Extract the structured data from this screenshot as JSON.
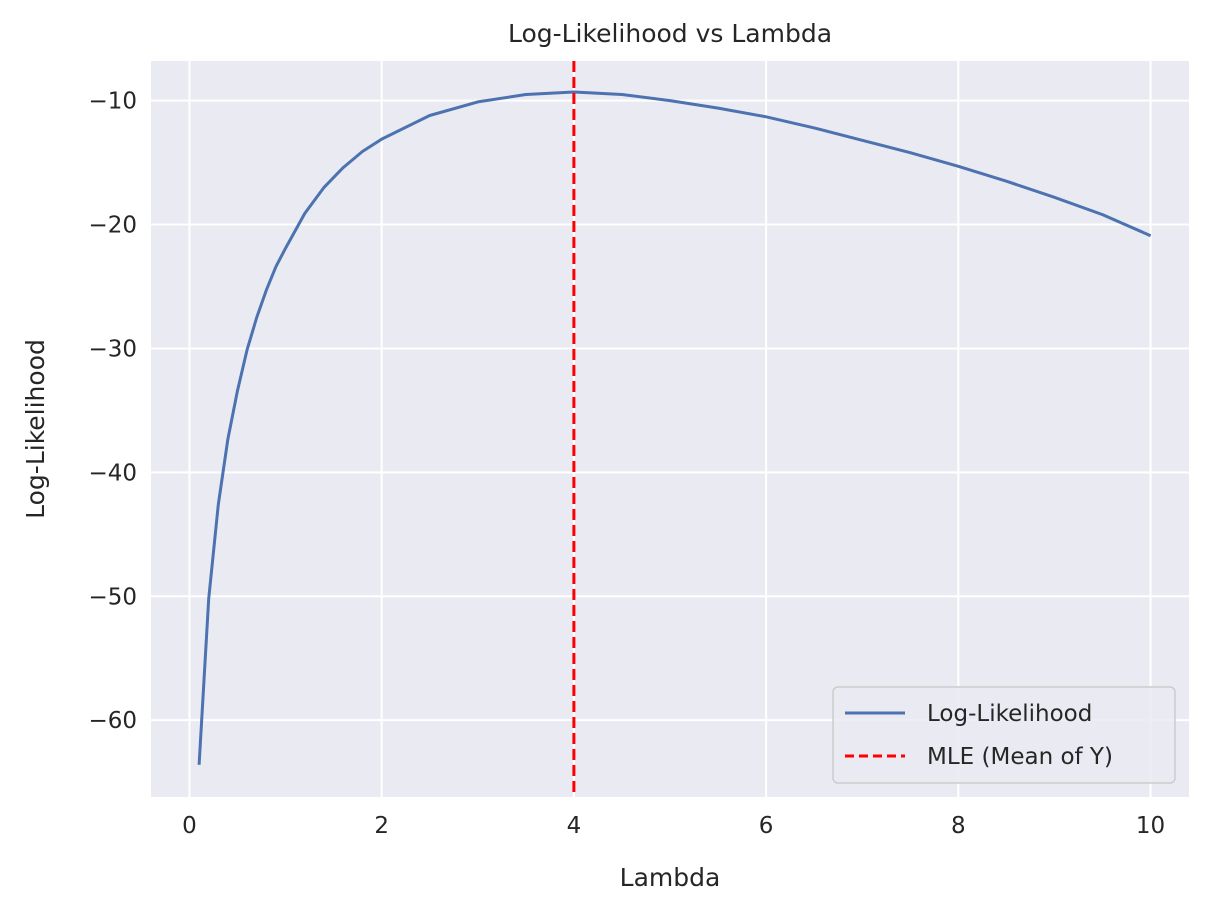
{
  "chart_data": {
    "type": "line",
    "title": "Log-Likelihood vs Lambda",
    "xlabel": "Lambda",
    "ylabel": "Log-Likelihood",
    "xlim": [
      -0.4,
      10.4
    ],
    "ylim": [
      -66.2,
      -6.8
    ],
    "x_ticks": [
      0,
      2,
      4,
      6,
      8,
      10
    ],
    "y_ticks": [
      -60,
      -50,
      -40,
      -30,
      -20,
      -10
    ],
    "x_tick_labels": [
      "0",
      "2",
      "4",
      "6",
      "8",
      "10"
    ],
    "y_tick_labels": [
      "−60",
      "−50",
      "−40",
      "−30",
      "−20",
      "−10"
    ],
    "grid": true,
    "legend_position": "lower-right",
    "series": [
      {
        "name": "Log-Likelihood",
        "color": "#4c72b0",
        "style": "solid",
        "x": [
          0.1,
          0.2,
          0.3,
          0.4,
          0.5,
          0.6,
          0.7,
          0.8,
          0.9,
          1.0,
          1.2,
          1.4,
          1.6,
          1.8,
          2.0,
          2.5,
          3.0,
          3.5,
          4.0,
          4.5,
          5.0,
          5.5,
          6.0,
          6.5,
          7.0,
          7.5,
          8.0,
          8.5,
          9.0,
          9.5,
          10.0
        ],
        "y": [
          -63.6,
          -50.2,
          -42.6,
          -37.3,
          -33.4,
          -30.1,
          -27.5,
          -25.3,
          -23.4,
          -21.9,
          -19.1,
          -17.0,
          -15.4,
          -14.1,
          -13.1,
          -11.2,
          -10.1,
          -9.5,
          -9.3,
          -9.5,
          -10.0,
          -10.6,
          -11.3,
          -12.2,
          -13.2,
          -14.2,
          -15.3,
          -16.5,
          -17.8,
          -19.2,
          -20.9
        ]
      },
      {
        "name": "MLE (Mean of Y)",
        "color": "#ff0000",
        "style": "dashed",
        "vline_x": 4.0
      }
    ]
  }
}
